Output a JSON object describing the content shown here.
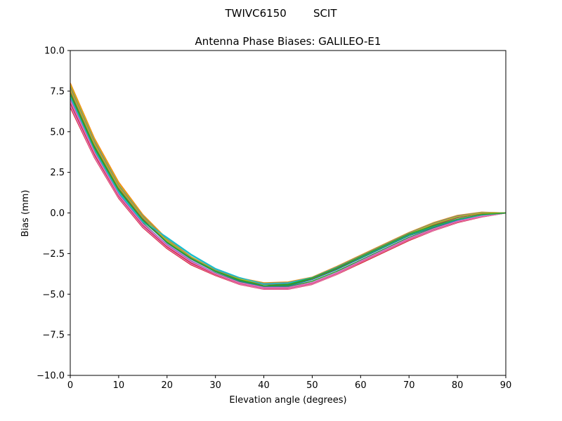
{
  "figure": {
    "suptitle": "TWIVC6150        SCIT"
  },
  "chart_data": {
    "type": "line",
    "title": "Antenna Phase Biases: GALILEO-E1",
    "xlabel": "Elevation angle (degrees)",
    "ylabel": "Bias (mm)",
    "xlim": [
      0,
      90
    ],
    "ylim": [
      -10,
      10
    ],
    "xticks": [
      0,
      10,
      20,
      30,
      40,
      50,
      60,
      70,
      80,
      90
    ],
    "xtick_labels": [
      "0",
      "10",
      "20",
      "30",
      "40",
      "50",
      "60",
      "70",
      "80",
      "90"
    ],
    "yticks": [
      -10,
      -7.5,
      -5,
      -2.5,
      0,
      2.5,
      5,
      7.5,
      10
    ],
    "ytick_labels": [
      "−10.0",
      "−7.5",
      "−5.0",
      "−2.5",
      "0.0",
      "2.5",
      "5.0",
      "7.5",
      "10.0"
    ],
    "grid": false,
    "legend": "none",
    "x": [
      0,
      5,
      10,
      15,
      20,
      25,
      30,
      35,
      40,
      45,
      50,
      55,
      60,
      65,
      70,
      75,
      80,
      85,
      90
    ],
    "series": [
      {
        "color": "#1f77b4",
        "values": [
          7.2,
          4.0,
          1.3,
          -0.5,
          -1.8,
          -2.8,
          -3.6,
          -4.2,
          -4.55,
          -4.5,
          -4.1,
          -3.5,
          -2.8,
          -2.1,
          -1.4,
          -0.9,
          -0.45,
          -0.15,
          0.0
        ]
      },
      {
        "color": "#ff7f0e",
        "values": [
          8.0,
          4.6,
          1.9,
          -0.1,
          -1.6,
          -2.7,
          -3.5,
          -4.0,
          -4.3,
          -4.25,
          -3.95,
          -3.3,
          -2.6,
          -1.9,
          -1.2,
          -0.6,
          -0.15,
          0.05,
          0.0
        ]
      },
      {
        "color": "#2ca02c",
        "values": [
          7.0,
          3.8,
          1.2,
          -0.6,
          -2.0,
          -3.0,
          -3.7,
          -4.25,
          -4.6,
          -4.55,
          -4.2,
          -3.6,
          -2.9,
          -2.2,
          -1.5,
          -0.95,
          -0.5,
          -0.2,
          0.0
        ]
      },
      {
        "color": "#d62728",
        "values": [
          6.5,
          3.4,
          0.9,
          -0.9,
          -2.2,
          -3.2,
          -3.85,
          -4.4,
          -4.7,
          -4.7,
          -4.4,
          -3.8,
          -3.1,
          -2.4,
          -1.7,
          -1.1,
          -0.6,
          -0.25,
          0.0
        ]
      },
      {
        "color": "#9467bd",
        "values": [
          6.7,
          3.5,
          1.0,
          -0.8,
          -2.1,
          -3.1,
          -3.8,
          -4.35,
          -4.65,
          -4.65,
          -4.35,
          -3.75,
          -3.0,
          -2.3,
          -1.6,
          -1.05,
          -0.55,
          -0.22,
          0.0
        ]
      },
      {
        "color": "#8c564b",
        "values": [
          7.8,
          4.4,
          1.7,
          -0.2,
          -1.7,
          -2.75,
          -3.55,
          -4.05,
          -4.35,
          -4.3,
          -4.0,
          -3.35,
          -2.65,
          -1.95,
          -1.25,
          -0.65,
          -0.2,
          0.02,
          0.0
        ]
      },
      {
        "color": "#e377c2",
        "values": [
          6.6,
          3.45,
          0.95,
          -0.85,
          -2.15,
          -3.15,
          -3.82,
          -4.38,
          -4.68,
          -4.68,
          -4.38,
          -3.78,
          -3.05,
          -2.35,
          -1.65,
          -1.08,
          -0.58,
          -0.24,
          0.0
        ]
      },
      {
        "color": "#7f7f7f",
        "values": [
          7.6,
          4.3,
          1.6,
          -0.3,
          -1.75,
          -2.8,
          -3.58,
          -4.08,
          -4.38,
          -4.33,
          -4.02,
          -3.4,
          -2.7,
          -2.0,
          -1.3,
          -0.7,
          -0.25,
          0.0,
          0.0
        ]
      },
      {
        "color": "#bcbd22",
        "values": [
          7.9,
          4.5,
          1.8,
          -0.15,
          -1.65,
          -2.72,
          -3.52,
          -4.02,
          -4.32,
          -4.27,
          -3.97,
          -3.32,
          -2.62,
          -1.92,
          -1.22,
          -0.62,
          -0.17,
          0.04,
          0.0
        ]
      },
      {
        "color": "#17becf",
        "values": [
          7.1,
          3.9,
          1.25,
          -0.55,
          -1.55,
          -2.6,
          -3.45,
          -4.0,
          -4.4,
          -4.35,
          -4.0,
          -3.4,
          -2.75,
          -2.05,
          -1.35,
          -0.85,
          -0.42,
          -0.14,
          0.0
        ]
      },
      {
        "color": "#1f77b4",
        "values": [
          7.3,
          4.05,
          1.35,
          -0.45,
          -1.85,
          -2.85,
          -3.62,
          -4.18,
          -4.52,
          -4.48,
          -4.08,
          -3.48,
          -2.78,
          -2.08,
          -1.38,
          -0.88,
          -0.44,
          -0.15,
          0.0
        ]
      },
      {
        "color": "#ff7f0e",
        "values": [
          7.7,
          4.35,
          1.65,
          -0.25,
          -1.7,
          -2.78,
          -3.56,
          -4.06,
          -4.36,
          -4.31,
          -4.0,
          -3.38,
          -2.68,
          -1.98,
          -1.28,
          -0.68,
          -0.22,
          0.01,
          0.0
        ]
      },
      {
        "color": "#2ca02c",
        "values": [
          7.4,
          4.1,
          1.45,
          -0.4,
          -1.82,
          -2.82,
          -3.6,
          -4.15,
          -4.5,
          -4.45,
          -4.05,
          -3.45,
          -2.75,
          -2.05,
          -1.35,
          -0.85,
          -0.4,
          -0.12,
          0.0
        ]
      },
      {
        "color": "#d62728",
        "values": [
          6.8,
          3.6,
          1.05,
          -0.75,
          -2.08,
          -3.08,
          -3.78,
          -4.32,
          -4.62,
          -4.62,
          -4.32,
          -3.72,
          -3.0,
          -2.3,
          -1.6,
          -1.02,
          -0.54,
          -0.21,
          0.0
        ]
      },
      {
        "color": "#9467bd",
        "values": [
          7.0,
          3.75,
          1.15,
          -0.65,
          -1.95,
          -2.95,
          -3.72,
          -4.28,
          -4.58,
          -4.58,
          -4.28,
          -3.68,
          -2.95,
          -2.25,
          -1.55,
          -0.98,
          -0.5,
          -0.19,
          0.0
        ]
      },
      {
        "color": "#8c564b",
        "values": [
          7.5,
          4.2,
          1.55,
          -0.35,
          -1.78,
          -2.8,
          -3.57,
          -4.1,
          -4.4,
          -4.36,
          -4.03,
          -3.42,
          -2.72,
          -2.02,
          -1.32,
          -0.75,
          -0.3,
          -0.04,
          0.0
        ]
      },
      {
        "color": "#e377c2",
        "values": [
          6.9,
          3.7,
          1.1,
          -0.7,
          -2.02,
          -3.02,
          -3.75,
          -4.3,
          -4.6,
          -4.6,
          -4.3,
          -3.7,
          -2.98,
          -2.28,
          -1.58,
          -1.0,
          -0.52,
          -0.2,
          0.0
        ]
      },
      {
        "color": "#7f7f7f",
        "values": [
          7.7,
          4.4,
          1.7,
          -0.2,
          -1.68,
          -2.76,
          -3.54,
          -4.04,
          -4.34,
          -4.29,
          -3.98,
          -3.34,
          -2.64,
          -1.94,
          -1.24,
          -0.64,
          -0.18,
          0.03,
          0.0
        ]
      },
      {
        "color": "#bcbd22",
        "values": [
          7.6,
          4.25,
          1.6,
          -0.28,
          -1.72,
          -2.79,
          -3.57,
          -4.07,
          -4.37,
          -4.32,
          -4.01,
          -3.39,
          -2.69,
          -1.99,
          -1.29,
          -0.69,
          -0.23,
          0.0,
          0.0
        ]
      },
      {
        "color": "#17becf",
        "values": [
          7.2,
          3.95,
          1.3,
          -0.5,
          -1.5,
          -2.55,
          -3.42,
          -3.98,
          -4.38,
          -4.32,
          -3.98,
          -3.38,
          -2.72,
          -2.02,
          -1.32,
          -0.82,
          -0.4,
          -0.13,
          0.0
        ]
      },
      {
        "color": "#2ca02c",
        "values": [
          7.3,
          4.0,
          1.4,
          -0.45,
          -1.8,
          -2.8,
          -3.58,
          -4.12,
          -4.48,
          -4.4,
          -4.0,
          -3.4,
          -2.7,
          -2.0,
          -1.3,
          -0.8,
          -0.38,
          -0.1,
          0.0
        ]
      }
    ]
  }
}
